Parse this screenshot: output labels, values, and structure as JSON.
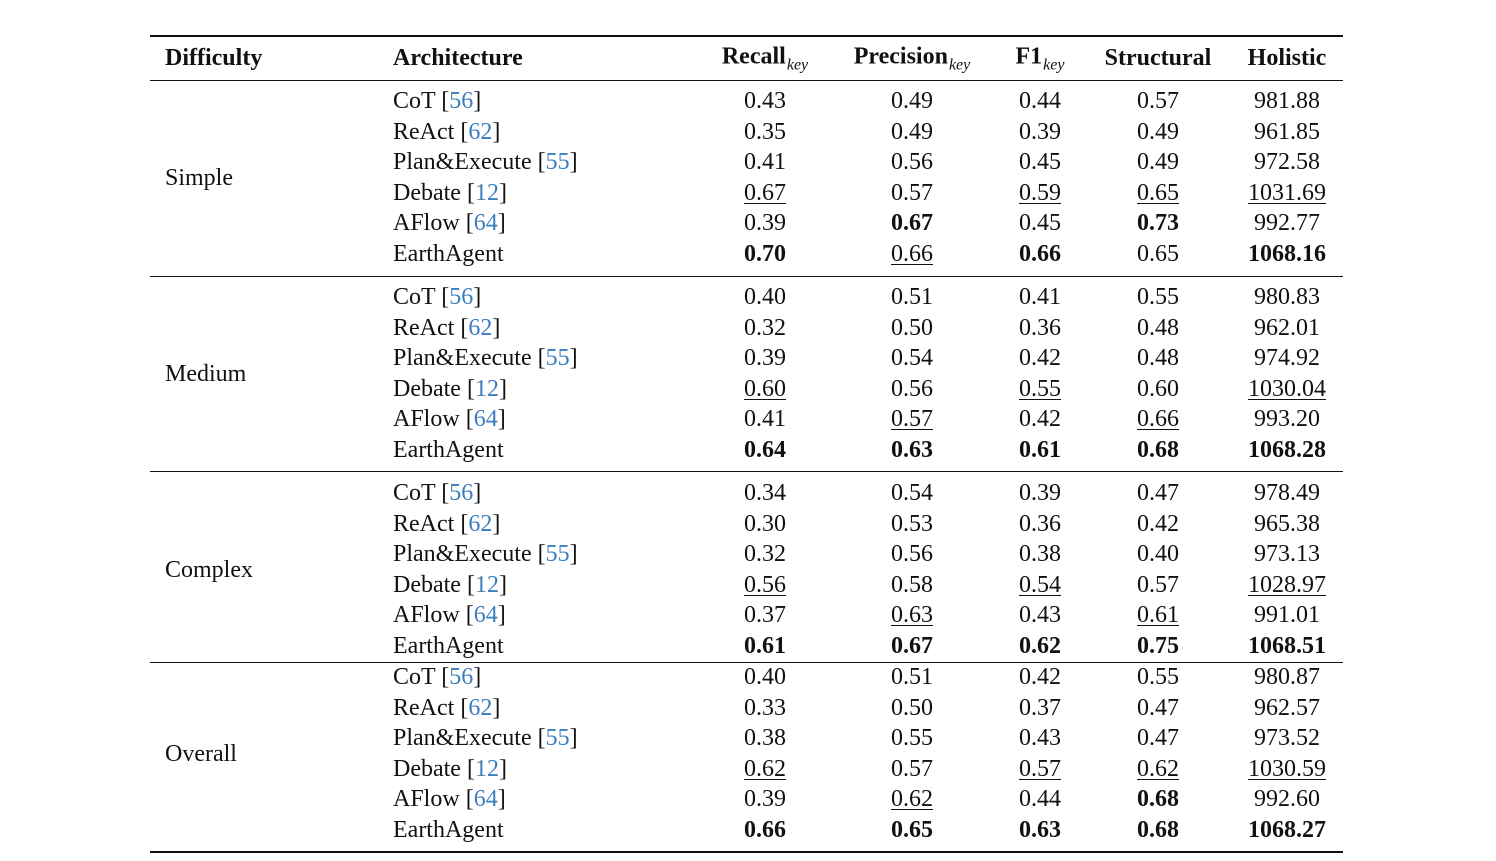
{
  "header": {
    "columns": [
      {
        "text": "Difficulty"
      },
      {
        "text": "Architecture"
      },
      {
        "text": "Recall",
        "sub": "key"
      },
      {
        "text": "Precision",
        "sub": "key"
      },
      {
        "text": "F1",
        "sub": "key"
      },
      {
        "text": "Structural"
      },
      {
        "text": "Holistic"
      }
    ]
  },
  "groups": [
    {
      "name": "Simple",
      "rows": [
        {
          "arch": "CoT",
          "cite": "56",
          "values": [
            "0.43",
            "0.49",
            "0.44",
            "0.57",
            "981.88"
          ]
        },
        {
          "arch": "ReAct",
          "cite": "62",
          "values": [
            "0.35",
            "0.49",
            "0.39",
            "0.49",
            "961.85"
          ]
        },
        {
          "arch": "Plan&Execute",
          "cite": "55",
          "values": [
            "0.41",
            "0.56",
            "0.45",
            "0.49",
            "972.58"
          ]
        },
        {
          "arch": "Debate",
          "cite": "12",
          "values": [
            "0.67",
            "0.57",
            "0.59",
            "0.65",
            "1031.69"
          ],
          "underline": [
            0,
            2,
            3,
            4
          ]
        },
        {
          "arch": "AFlow",
          "cite": "64",
          "values": [
            "0.39",
            "0.67",
            "0.45",
            "0.73",
            "992.77"
          ],
          "bold": [
            1,
            3
          ]
        },
        {
          "arch": "EarthAgent",
          "values": [
            "0.70",
            "0.66",
            "0.66",
            "0.65",
            "1068.16"
          ],
          "bold": [
            0,
            2,
            4
          ],
          "underline": [
            1
          ]
        }
      ]
    },
    {
      "name": "Medium",
      "rows": [
        {
          "arch": "CoT",
          "cite": "56",
          "values": [
            "0.40",
            "0.51",
            "0.41",
            "0.55",
            "980.83"
          ]
        },
        {
          "arch": "ReAct",
          "cite": "62",
          "values": [
            "0.32",
            "0.50",
            "0.36",
            "0.48",
            "962.01"
          ]
        },
        {
          "arch": "Plan&Execute",
          "cite": "55",
          "values": [
            "0.39",
            "0.54",
            "0.42",
            "0.48",
            "974.92"
          ]
        },
        {
          "arch": "Debate",
          "cite": "12",
          "values": [
            "0.60",
            "0.56",
            "0.55",
            "0.60",
            "1030.04"
          ],
          "underline": [
            0,
            2,
            4
          ]
        },
        {
          "arch": "AFlow",
          "cite": "64",
          "values": [
            "0.41",
            "0.57",
            "0.42",
            "0.66",
            "993.20"
          ],
          "underline": [
            1,
            3
          ]
        },
        {
          "arch": "EarthAgent",
          "values": [
            "0.64",
            "0.63",
            "0.61",
            "0.68",
            "1068.28"
          ],
          "bold": [
            0,
            1,
            2,
            3,
            4
          ]
        }
      ]
    },
    {
      "name": "Complex",
      "rows": [
        {
          "arch": "CoT",
          "cite": "56",
          "values": [
            "0.34",
            "0.54",
            "0.39",
            "0.47",
            "978.49"
          ]
        },
        {
          "arch": "ReAct",
          "cite": "62",
          "values": [
            "0.30",
            "0.53",
            "0.36",
            "0.42",
            "965.38"
          ]
        },
        {
          "arch": "Plan&Execute",
          "cite": "55",
          "values": [
            "0.32",
            "0.56",
            "0.38",
            "0.40",
            "973.13"
          ]
        },
        {
          "arch": "Debate",
          "cite": "12",
          "values": [
            "0.56",
            "0.58",
            "0.54",
            "0.57",
            "1028.97"
          ],
          "underline": [
            0,
            2,
            4
          ]
        },
        {
          "arch": "AFlow",
          "cite": "64",
          "values": [
            "0.37",
            "0.63",
            "0.43",
            "0.61",
            "991.01"
          ],
          "underline": [
            1,
            3
          ]
        },
        {
          "arch": "EarthAgent",
          "values": [
            "0.61",
            "0.67",
            "0.62",
            "0.75",
            "1068.51"
          ],
          "bold": [
            0,
            1,
            2,
            3,
            4
          ]
        }
      ]
    },
    {
      "name": "Overall",
      "rows": [
        {
          "arch": "CoT",
          "cite": "56",
          "values": [
            "0.40",
            "0.51",
            "0.42",
            "0.55",
            "980.87"
          ]
        },
        {
          "arch": "ReAct",
          "cite": "62",
          "values": [
            "0.33",
            "0.50",
            "0.37",
            "0.47",
            "962.57"
          ]
        },
        {
          "arch": "Plan&Execute",
          "cite": "55",
          "values": [
            "0.38",
            "0.55",
            "0.43",
            "0.47",
            "973.52"
          ]
        },
        {
          "arch": "Debate",
          "cite": "12",
          "values": [
            "0.62",
            "0.57",
            "0.57",
            "0.62",
            "1030.59"
          ],
          "underline": [
            0,
            2,
            3,
            4
          ]
        },
        {
          "arch": "AFlow",
          "cite": "64",
          "values": [
            "0.39",
            "0.62",
            "0.44",
            "0.68",
            "992.60"
          ],
          "bold": [
            3
          ],
          "underline": [
            1
          ]
        },
        {
          "arch": "EarthAgent",
          "values": [
            "0.66",
            "0.65",
            "0.63",
            "0.68",
            "1068.27"
          ],
          "bold": [
            0,
            1,
            2,
            3,
            4
          ]
        }
      ]
    }
  ]
}
